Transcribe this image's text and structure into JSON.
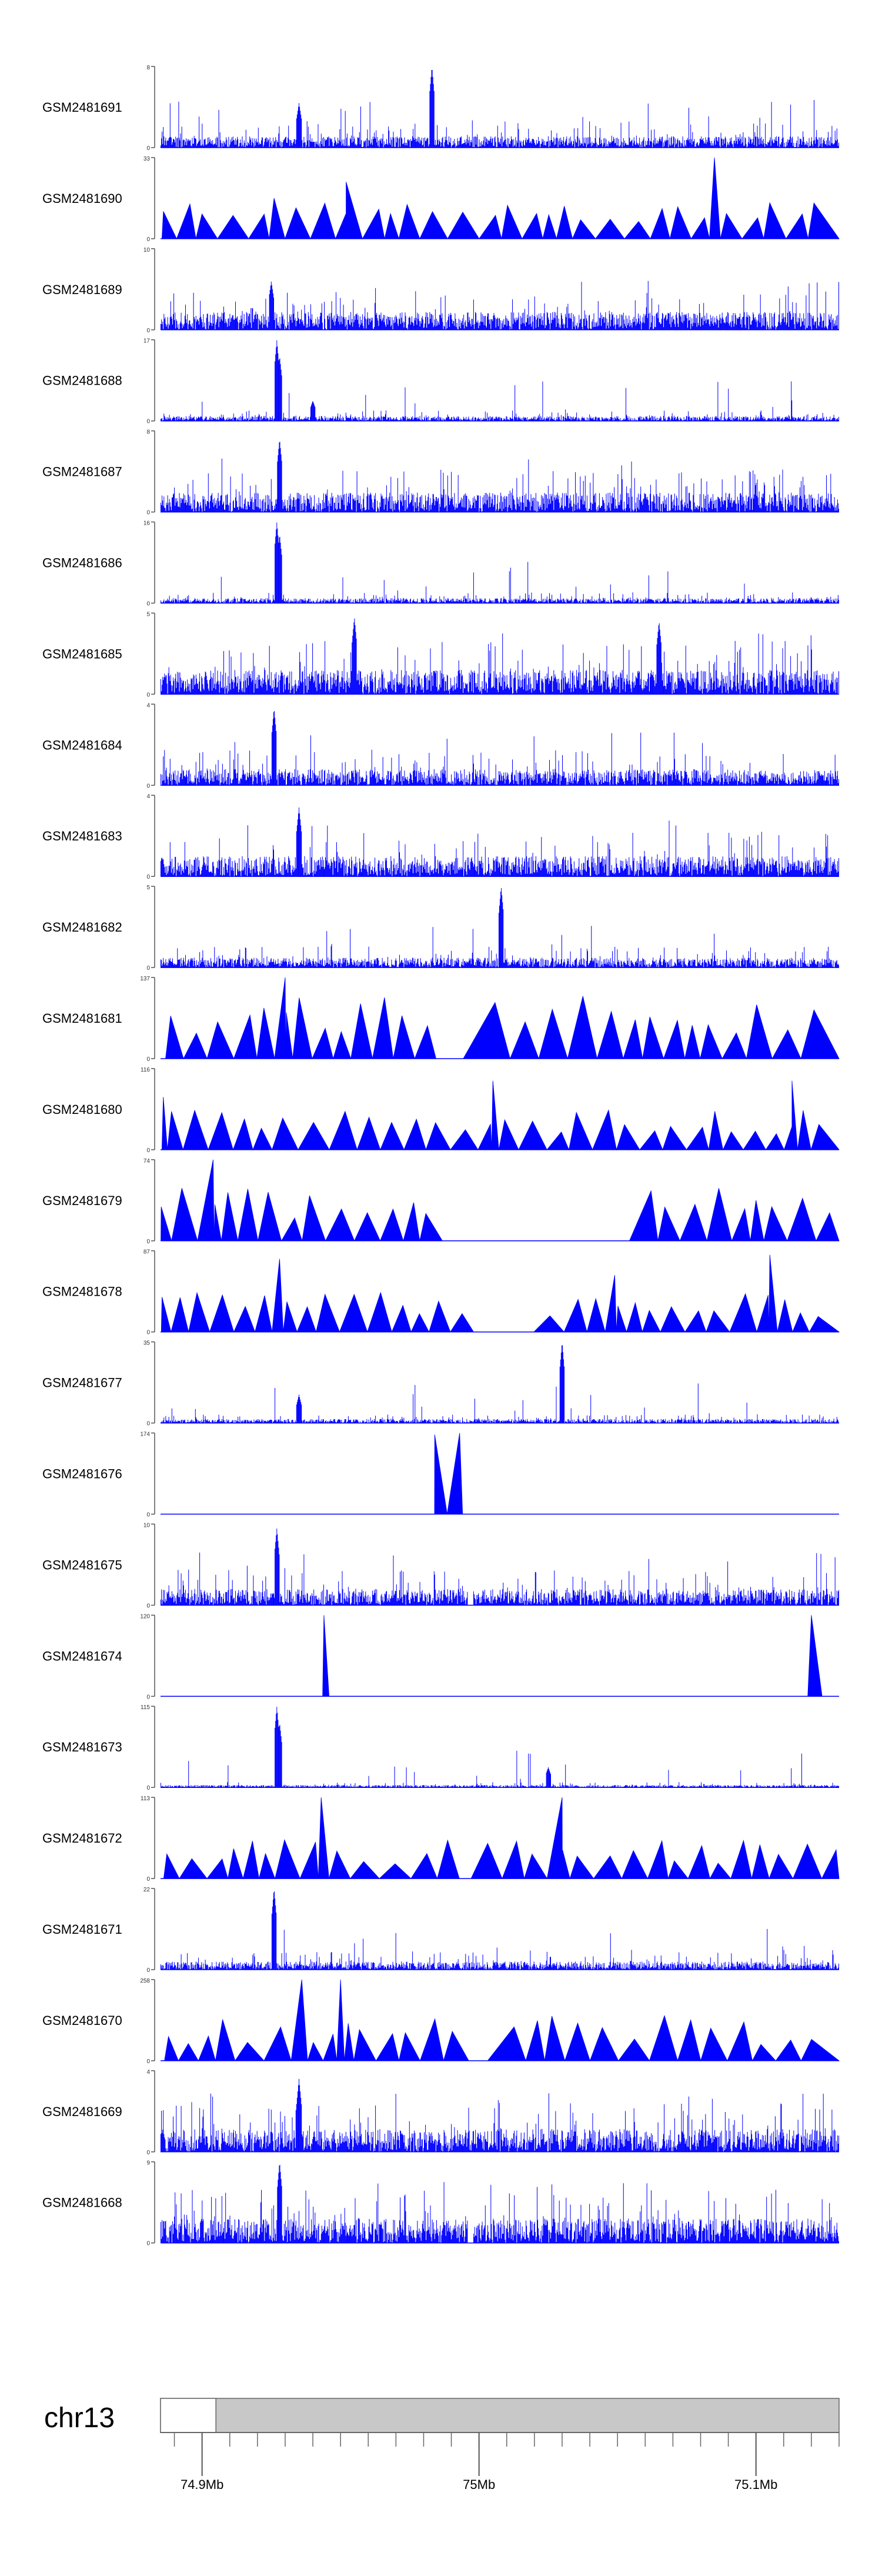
{
  "chart_data": {
    "type": "area",
    "title": "",
    "xlabel": "",
    "ylabel": "",
    "chromosome": "chr13",
    "x_unit": "Mb",
    "xlim": [
      74.885,
      75.13
    ],
    "x_ticks": [
      {
        "value": 74.9,
        "label": "74.9Mb"
      },
      {
        "value": 75.0,
        "label": "75Mb"
      },
      {
        "value": 75.1,
        "label": "75.1Mb"
      }
    ],
    "ideogram_region": [
      74.885,
      74.905
    ],
    "series_color": "#0000ff",
    "tracks": [
      {
        "name": "GSM2481691",
        "ymax": 8,
        "style": "noise",
        "seed": 11,
        "base": 0.14,
        "peaks": [
          {
            "x": 74.935,
            "h": 0.55
          },
          {
            "x": 74.983,
            "h": 1.0
          }
        ]
      },
      {
        "name": "GSM2481690",
        "ymax": 33,
        "style": "triangles",
        "seed": 12,
        "base": 0.32,
        "gaps": [
          [
            74.925,
            74.927
          ]
        ],
        "peaks": [
          {
            "x": 74.926,
            "h": 0.5
          },
          {
            "x": 75.085,
            "h": 1.0
          },
          {
            "x": 74.952,
            "h": 0.7
          }
        ]
      },
      {
        "name": "GSM2481689",
        "ymax": 10,
        "style": "noise",
        "seed": 13,
        "base": 0.22,
        "peaks": [
          {
            "x": 74.925,
            "h": 0.6
          }
        ]
      },
      {
        "name": "GSM2481688",
        "ymax": 17,
        "style": "noise",
        "seed": 14,
        "base": 0.06,
        "peaks": [
          {
            "x": 74.927,
            "h": 1.0
          },
          {
            "x": 74.928,
            "h": 0.8
          },
          {
            "x": 74.94,
            "h": 0.25
          }
        ]
      },
      {
        "name": "GSM2481687",
        "ymax": 8,
        "style": "noise",
        "seed": 15,
        "base": 0.24,
        "peaks": [
          {
            "x": 74.928,
            "h": 0.9
          }
        ]
      },
      {
        "name": "GSM2481686",
        "ymax": 16,
        "style": "noise",
        "seed": 16,
        "base": 0.06,
        "peaks": [
          {
            "x": 74.927,
            "h": 1.0
          },
          {
            "x": 74.928,
            "h": 0.85
          }
        ]
      },
      {
        "name": "GSM2481685",
        "ymax": 5,
        "style": "noise",
        "seed": 17,
        "base": 0.3,
        "peaks": [
          {
            "x": 74.955,
            "h": 0.95
          },
          {
            "x": 75.065,
            "h": 0.9
          }
        ]
      },
      {
        "name": "GSM2481684",
        "ymax": 4,
        "style": "noise",
        "seed": 18,
        "base": 0.2,
        "peaks": [
          {
            "x": 74.926,
            "h": 0.95
          }
        ]
      },
      {
        "name": "GSM2481683",
        "ymax": 4,
        "style": "noise",
        "seed": 19,
        "base": 0.25,
        "peaks": [
          {
            "x": 74.935,
            "h": 0.85
          }
        ]
      },
      {
        "name": "GSM2481682",
        "ymax": 5,
        "style": "noise",
        "seed": 20,
        "base": 0.12,
        "peaks": [
          {
            "x": 75.008,
            "h": 1.0
          }
        ]
      },
      {
        "name": "GSM2481681",
        "ymax": 137,
        "style": "triangles",
        "seed": 21,
        "base": 0.55,
        "gaps": [
          [
            74.985,
            75.004
          ]
        ],
        "peaks": [
          {
            "x": 74.93,
            "h": 1.0
          }
        ]
      },
      {
        "name": "GSM2481680",
        "ymax": 116,
        "style": "triangles",
        "seed": 22,
        "base": 0.35,
        "gaps": [
          [
            74.996,
            74.998
          ]
        ],
        "peaks": [
          {
            "x": 74.886,
            "h": 0.65
          },
          {
            "x": 75.005,
            "h": 0.85
          },
          {
            "x": 75.113,
            "h": 0.85
          }
        ]
      },
      {
        "name": "GSM2481679",
        "ymax": 74,
        "style": "triangles",
        "seed": 23,
        "base": 0.5,
        "gaps": [
          [
            74.992,
            75.06
          ]
        ],
        "peaks": [
          {
            "x": 74.904,
            "h": 1.0
          },
          {
            "x": 75.1,
            "h": 0.5
          }
        ]
      },
      {
        "name": "GSM2481678",
        "ymax": 87,
        "style": "triangles",
        "seed": 24,
        "base": 0.35,
        "gaps": [
          [
            75.001,
            75.018
          ]
        ],
        "peaks": [
          {
            "x": 74.928,
            "h": 0.9
          },
          {
            "x": 75.049,
            "h": 0.7
          },
          {
            "x": 75.105,
            "h": 0.95
          }
        ]
      },
      {
        "name": "GSM2481677",
        "ymax": 35,
        "style": "noise",
        "seed": 25,
        "base": 0.05,
        "peaks": [
          {
            "x": 75.03,
            "h": 1.0
          },
          {
            "x": 74.935,
            "h": 0.35
          }
        ]
      },
      {
        "name": "GSM2481676",
        "ymax": 174,
        "style": "triangles",
        "seed": 26,
        "base": 0.0,
        "gaps": [
          [
            74.885,
            74.937
          ],
          [
            75.07,
            75.13
          ]
        ],
        "peaks": [
          {
            "x": 74.984,
            "h": 0.98
          },
          {
            "x": 74.993,
            "h": 1.0
          }
        ]
      },
      {
        "name": "GSM2481675",
        "ymax": 10,
        "style": "noise",
        "seed": 27,
        "base": 0.2,
        "gaps": [
          [
            74.996,
            74.998
          ]
        ],
        "peaks": [
          {
            "x": 74.927,
            "h": 0.95
          }
        ]
      },
      {
        "name": "GSM2481674",
        "ymax": 120,
        "style": "triangles",
        "seed": 28,
        "base": 0.0,
        "gaps": [
          [
            74.885,
            74.914
          ],
          [
            74.974,
            75.063
          ]
        ],
        "peaks": [
          {
            "x": 74.944,
            "h": 1.0
          },
          {
            "x": 75.12,
            "h": 1.0
          }
        ]
      },
      {
        "name": "GSM2481673",
        "ymax": 115,
        "style": "noise",
        "seed": 29,
        "base": 0.03,
        "peaks": [
          {
            "x": 74.927,
            "h": 1.0
          },
          {
            "x": 74.928,
            "h": 0.8
          },
          {
            "x": 75.025,
            "h": 0.25
          }
        ]
      },
      {
        "name": "GSM2481672",
        "ymax": 113,
        "style": "triangles",
        "seed": 30,
        "base": 0.35,
        "gaps": [
          [
            74.996,
            75.002
          ]
        ],
        "peaks": [
          {
            "x": 74.943,
            "h": 1.0
          },
          {
            "x": 75.03,
            "h": 1.0
          }
        ]
      },
      {
        "name": "GSM2481671",
        "ymax": 22,
        "style": "noise",
        "seed": 31,
        "base": 0.1,
        "peaks": [
          {
            "x": 74.926,
            "h": 1.0
          }
        ]
      },
      {
        "name": "GSM2481670",
        "ymax": 258,
        "style": "triangles",
        "seed": 32,
        "base": 0.4,
        "gaps": [
          [
            74.991,
            75.012
          ]
        ],
        "peaks": [
          {
            "x": 74.95,
            "h": 1.0
          },
          {
            "x": 74.936,
            "h": 1.0
          }
        ]
      },
      {
        "name": "GSM2481669",
        "ymax": 4,
        "style": "noise",
        "seed": 33,
        "base": 0.28,
        "peaks": [
          {
            "x": 74.935,
            "h": 0.9
          }
        ]
      },
      {
        "name": "GSM2481668",
        "ymax": 9,
        "style": "noise",
        "seed": 34,
        "base": 0.3,
        "gaps": [
          [
            74.996,
            74.998
          ]
        ],
        "peaks": [
          {
            "x": 74.928,
            "h": 1.0
          }
        ]
      }
    ]
  }
}
